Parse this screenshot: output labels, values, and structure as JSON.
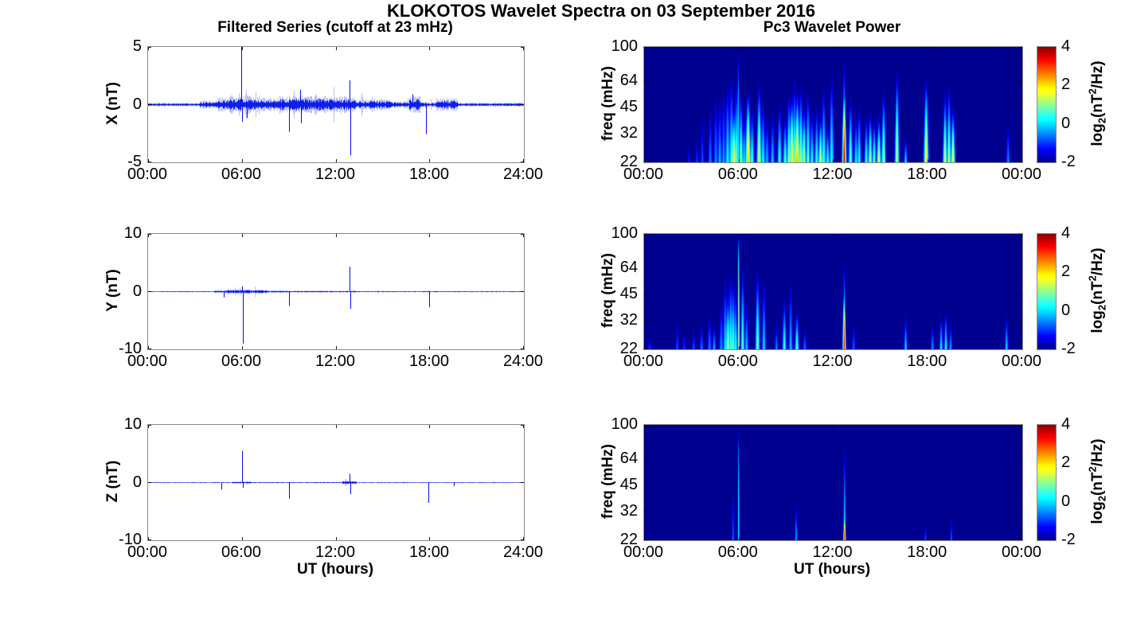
{
  "figure": {
    "title": "KLOKOTOS Wavelet Spectra on 03 September 2016",
    "left_subtitle": "Filtered Series (cutoff at 23 mHz)",
    "right_subtitle": "Pc3 Wavelet Power",
    "xlabel": "UT (hours)",
    "line_color": "#0010ee",
    "panel_border_color": "#8a8a8a",
    "background": "#ffffff"
  },
  "colorbar": {
    "ticks": [
      "4",
      "2",
      "0",
      "-2"
    ],
    "label_parts": [
      "log",
      "2",
      "(nT",
      "2",
      "/Hz)"
    ],
    "range": [
      -2,
      4
    ]
  },
  "chart_data": [
    {
      "id": "x-filtered-series",
      "type": "line",
      "ylabel": "X (nT)",
      "ylim": [
        -5,
        5
      ],
      "yticks": [
        5,
        0,
        -5
      ],
      "xtick_labels": [
        "00:00",
        "06:00",
        "12:00",
        "18:00",
        "24:00"
      ],
      "x_hours": [
        0,
        24
      ],
      "seed": 11,
      "noise_envelope": [
        [
          0,
          3.3,
          0.1
        ],
        [
          3.3,
          4.3,
          0.22
        ],
        [
          4.3,
          5.2,
          0.38
        ],
        [
          5.2,
          6.6,
          0.5
        ],
        [
          6.6,
          7.6,
          0.42
        ],
        [
          7.6,
          8.4,
          0.35
        ],
        [
          8.4,
          11.2,
          0.5
        ],
        [
          11.2,
          13.3,
          0.45
        ],
        [
          13.3,
          15.5,
          0.3
        ],
        [
          15.5,
          16.7,
          0.2
        ],
        [
          16.7,
          17.4,
          0.45
        ],
        [
          17.4,
          18.4,
          0.15
        ],
        [
          18.4,
          19.8,
          0.35
        ],
        [
          19.8,
          24,
          0.11
        ]
      ],
      "spikes": [
        [
          5.95,
          5.0
        ],
        [
          5.99,
          -1.5
        ],
        [
          6.3,
          -1.15
        ],
        [
          9.0,
          -2.35
        ],
        [
          9.73,
          1.3
        ],
        [
          9.78,
          -1.6
        ],
        [
          12.88,
          2.1
        ],
        [
          12.93,
          -4.4
        ],
        [
          16.9,
          0.9
        ],
        [
          17.75,
          -2.55
        ]
      ]
    },
    {
      "id": "y-filtered-series",
      "type": "line",
      "ylabel": "Y (nT)",
      "ylim": [
        -10,
        10
      ],
      "yticks": [
        10,
        0,
        -10
      ],
      "xtick_labels": [
        "00:00",
        "06:00",
        "12:00",
        "18:00",
        "24:00"
      ],
      "x_hours": [
        0,
        24
      ],
      "seed": 22,
      "noise_envelope": [
        [
          0,
          4.2,
          0.07
        ],
        [
          4.2,
          5.0,
          0.15
        ],
        [
          5.0,
          7.6,
          0.25
        ],
        [
          7.6,
          9.0,
          0.12
        ],
        [
          9.0,
          13.2,
          0.1
        ],
        [
          13.2,
          24,
          0.07
        ]
      ],
      "spikes": [
        [
          4.85,
          -1.0
        ],
        [
          6.0,
          0.9
        ],
        [
          6.05,
          -9.0
        ],
        [
          9.0,
          -2.5
        ],
        [
          12.88,
          4.3
        ],
        [
          12.93,
          -3.0
        ],
        [
          17.95,
          -2.7
        ]
      ]
    },
    {
      "id": "z-filtered-series",
      "type": "line",
      "ylabel": "Z (nT)",
      "ylim": [
        -10,
        10
      ],
      "yticks": [
        10,
        0,
        -10
      ],
      "xtick_labels": [
        "00:00",
        "06:00",
        "12:00",
        "18:00",
        "24:00"
      ],
      "x_hours": [
        0,
        24
      ],
      "seed": 33,
      "noise_envelope": [
        [
          0,
          5.4,
          0.06
        ],
        [
          5.4,
          6.6,
          0.12
        ],
        [
          6.6,
          12.4,
          0.07
        ],
        [
          12.4,
          13.3,
          0.2
        ],
        [
          13.3,
          24,
          0.06
        ]
      ],
      "spikes": [
        [
          4.7,
          -1.2
        ],
        [
          5.98,
          5.5
        ],
        [
          6.03,
          -0.9
        ],
        [
          9.0,
          -2.8
        ],
        [
          12.85,
          1.5
        ],
        [
          12.9,
          -2.0
        ],
        [
          17.9,
          -3.5
        ],
        [
          19.5,
          -0.6
        ]
      ]
    },
    {
      "id": "x-wavelet-power",
      "type": "heatmap",
      "ylabel": "freq (mHz)",
      "yticks": [
        100,
        64,
        45,
        32,
        22
      ],
      "freq_lim": [
        22,
        100
      ],
      "xtick_labels": [
        "00:00",
        "06:00",
        "12:00",
        "18:00",
        "00:00"
      ],
      "x_hours": [
        0,
        24
      ],
      "clim": [
        -2,
        4
      ],
      "background_value": -2,
      "events": [
        [
          2.85,
          27,
          -1.1,
          1.2,
          1.3
        ],
        [
          3.35,
          30,
          -0.9,
          1.2,
          1.3
        ],
        [
          3.7,
          40,
          -0.8,
          1.5,
          1.3
        ],
        [
          4.2,
          47,
          -0.5,
          1.6,
          1.3
        ],
        [
          4.55,
          56,
          -0.4,
          1.6,
          1.3
        ],
        [
          4.8,
          52,
          -0.2,
          1.8,
          1.3
        ],
        [
          5.05,
          60,
          -0.3,
          1.6,
          1.3
        ],
        [
          5.3,
          64,
          0.3,
          2,
          1.3
        ],
        [
          5.55,
          70,
          0.6,
          2,
          1.3
        ],
        [
          5.7,
          46,
          1.9,
          2.2,
          1.3
        ],
        [
          5.85,
          62,
          0.9,
          1.8,
          1.3
        ],
        [
          5.97,
          100,
          0.6,
          0.9,
          2.2
        ],
        [
          6.15,
          56,
          1.1,
          1.8,
          1.3
        ],
        [
          6.35,
          42,
          0.1,
          1.8,
          1.3
        ],
        [
          6.6,
          56,
          2.3,
          2.2,
          1.5
        ],
        [
          6.85,
          46,
          0.6,
          1.8,
          1.3
        ],
        [
          7.3,
          63,
          1.6,
          2,
          1.4
        ],
        [
          7.55,
          50,
          0.4,
          1.8,
          1.3
        ],
        [
          7.8,
          41,
          -0.2,
          1.8,
          1.3
        ],
        [
          8.15,
          43,
          -0.1,
          1.8,
          1.3
        ],
        [
          8.6,
          48,
          0.6,
          1.8,
          1.3
        ],
        [
          8.95,
          41,
          0.7,
          1.8,
          1.3
        ],
        [
          9.2,
          56,
          1.1,
          2,
          1.3
        ],
        [
          9.38,
          53,
          2.1,
          2.2,
          1.4
        ],
        [
          9.55,
          66,
          0.9,
          1.8,
          1.3
        ],
        [
          9.72,
          56,
          2.4,
          2.2,
          1.4
        ],
        [
          9.95,
          61,
          1.3,
          1.8,
          1.3
        ],
        [
          10.15,
          46,
          1.6,
          1.8,
          1.3
        ],
        [
          10.4,
          57,
          0.9,
          1.8,
          1.3
        ],
        [
          10.65,
          43,
          0.4,
          1.8,
          1.3
        ],
        [
          10.95,
          47,
          0.5,
          1.8,
          1.3
        ],
        [
          11.2,
          41,
          1.6,
          1.8,
          1.3
        ],
        [
          11.4,
          61,
          0.7,
          1.8,
          1.3
        ],
        [
          11.65,
          36,
          0.6,
          1.6,
          1.3
        ],
        [
          11.9,
          71,
          0.4,
          1.8,
          1.5
        ],
        [
          12.7,
          60,
          3.6,
          1.7,
          1.8
        ],
        [
          12.7,
          87,
          0.8,
          1.5,
          1.5
        ],
        [
          13.1,
          53,
          0.9,
          1.8,
          1.3
        ],
        [
          13.45,
          41,
          0.3,
          1.6,
          1.3
        ],
        [
          13.65,
          47,
          0.5,
          1.6,
          1.3
        ],
        [
          14.1,
          41,
          0.6,
          1.6,
          1.3
        ],
        [
          14.35,
          43,
          1.3,
          1.8,
          1.3
        ],
        [
          14.6,
          39,
          0.9,
          1.6,
          1.3
        ],
        [
          14.9,
          41,
          1.6,
          1.8,
          1.3
        ],
        [
          15.2,
          57,
          1.3,
          1.8,
          1.3
        ],
        [
          16.05,
          73,
          1.4,
          1.8,
          1.6
        ],
        [
          16.6,
          31,
          0.1,
          1.4,
          1.3
        ],
        [
          17.9,
          67,
          1.9,
          2,
          1.5
        ],
        [
          19.1,
          56,
          1.6,
          1.8,
          1.3
        ],
        [
          19.35,
          61,
          1.3,
          1.8,
          1.3
        ],
        [
          19.6,
          46,
          1.9,
          1.8,
          1.3
        ],
        [
          23.1,
          37,
          -0.4,
          1.4,
          1.3
        ]
      ]
    },
    {
      "id": "y-wavelet-power",
      "type": "heatmap",
      "ylabel": "freq (mHz)",
      "yticks": [
        100,
        64,
        45,
        32,
        22
      ],
      "freq_lim": [
        22,
        100
      ],
      "xtick_labels": [
        "00:00",
        "06:00",
        "12:00",
        "18:00",
        "00:00"
      ],
      "x_hours": [
        0,
        24
      ],
      "clim": [
        -2,
        4
      ],
      "background_value": -2,
      "events": [
        [
          0.35,
          26,
          -0.9,
          1.2,
          1.3
        ],
        [
          2.1,
          31,
          -0.7,
          1.2,
          1.3
        ],
        [
          2.55,
          27,
          -0.9,
          1.2,
          1.3
        ],
        [
          3.15,
          29,
          -0.7,
          1.2,
          1.3
        ],
        [
          3.65,
          31,
          -0.5,
          1.3,
          1.3
        ],
        [
          4.15,
          36,
          -0.4,
          1.4,
          1.3
        ],
        [
          4.45,
          31,
          -0.2,
          1.4,
          1.3
        ],
        [
          4.9,
          42,
          -0.3,
          1.5,
          1.3
        ],
        [
          5.15,
          59,
          0.1,
          1.8,
          1.3
        ],
        [
          5.32,
          47,
          1.1,
          2.2,
          1.3
        ],
        [
          5.5,
          61,
          0.6,
          2,
          1.3
        ],
        [
          5.65,
          56,
          0.9,
          1.8,
          1.3
        ],
        [
          5.8,
          51,
          0.4,
          1.8,
          1.3
        ],
        [
          6.0,
          100,
          1.6,
          0.8,
          5
        ],
        [
          6.25,
          67,
          0.7,
          1.6,
          1.4
        ],
        [
          6.5,
          42,
          -0.1,
          1.6,
          1.3
        ],
        [
          7.2,
          63,
          1.0,
          1.8,
          1.4
        ],
        [
          7.6,
          56,
          0.1,
          1.6,
          1.3
        ],
        [
          8.4,
          31,
          -0.4,
          1.3,
          1.3
        ],
        [
          8.9,
          43,
          0.7,
          1.6,
          1.3
        ],
        [
          9.3,
          56,
          -0.1,
          1.5,
          1.4
        ],
        [
          9.7,
          37,
          0.9,
          1.6,
          1.3
        ],
        [
          10.2,
          29,
          -0.5,
          1.3,
          1.3
        ],
        [
          12.7,
          50,
          3.4,
          1.3,
          1.8
        ],
        [
          12.7,
          73,
          0.6,
          1.2,
          1.5
        ],
        [
          13.3,
          31,
          -0.6,
          1.2,
          1.3
        ],
        [
          16.6,
          35,
          0.1,
          1.3,
          1.3
        ],
        [
          18.3,
          31,
          -0.3,
          1.3,
          1.3
        ],
        [
          18.85,
          35,
          0.3,
          1.3,
          1.3
        ],
        [
          19.15,
          37,
          0.5,
          1.3,
          1.3
        ],
        [
          19.45,
          31,
          -0.2,
          1.3,
          1.3
        ],
        [
          23.0,
          35,
          0.1,
          1.3,
          1.3
        ]
      ]
    },
    {
      "id": "z-wavelet-power",
      "type": "heatmap",
      "ylabel": "freq (mHz)",
      "yticks": [
        100,
        64,
        45,
        32,
        22
      ],
      "freq_lim": [
        22,
        100
      ],
      "xtick_labels": [
        "00:00",
        "06:00",
        "12:00",
        "18:00",
        "00:00"
      ],
      "x_hours": [
        0,
        24
      ],
      "clim": [
        -2,
        4
      ],
      "background_value": -2,
      "events": [
        [
          5.65,
          46,
          -0.7,
          1.0,
          1.3
        ],
        [
          6.0,
          100,
          0.2,
          0.8,
          4
        ],
        [
          9.65,
          36,
          -0.2,
          1.0,
          1.5
        ],
        [
          12.72,
          32,
          3.3,
          1.0,
          2.0
        ],
        [
          12.72,
          79,
          0.4,
          1.0,
          1.5
        ],
        [
          17.85,
          27,
          -0.8,
          0.9,
          1.3
        ],
        [
          19.5,
          31,
          -0.7,
          0.9,
          1.3
        ]
      ]
    }
  ]
}
